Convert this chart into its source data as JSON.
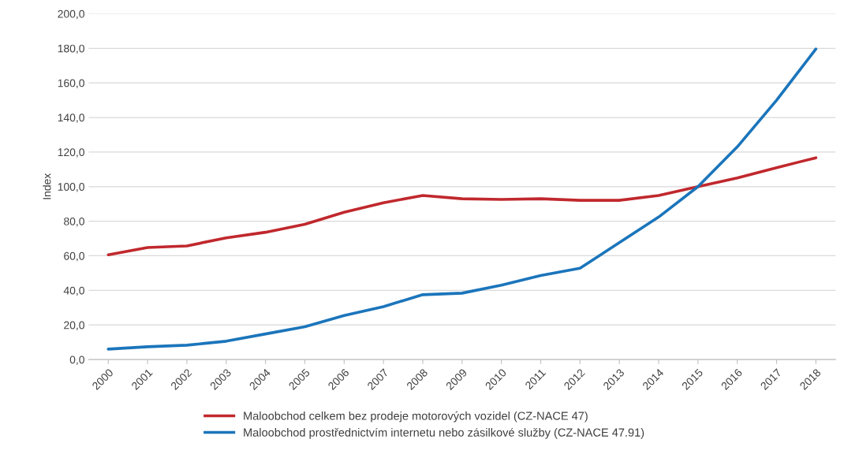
{
  "chart_data": {
    "type": "line",
    "ylabel": "Index",
    "categories": [
      "2000",
      "2001",
      "2002",
      "2003",
      "2004",
      "2005",
      "2006",
      "2007",
      "2008",
      "2009",
      "2010",
      "2011",
      "2012",
      "2013",
      "2014",
      "2015",
      "2016",
      "2017",
      "2018"
    ],
    "series": [
      {
        "name": "Maloobchod celkem bez prodeje motorových vozidel (CZ-NACE 47)",
        "color": "#c0282d",
        "values": [
          60.6,
          64.8,
          65.7,
          70.4,
          73.6,
          78.2,
          85.2,
          90.7,
          94.9,
          93.0,
          92.6,
          93.0,
          92.1,
          92.1,
          94.9,
          100.0,
          105.0,
          111.0,
          116.7
        ]
      },
      {
        "name": "Maloobchod prostřednictvím internetu nebo zásilkové služby (CZ-NACE 47.91)",
        "color": "#1b75bb",
        "values": [
          6.0,
          7.4,
          8.3,
          10.6,
          14.8,
          19.0,
          25.5,
          30.6,
          37.5,
          38.4,
          43.0,
          48.6,
          52.8,
          67.6,
          82.4,
          100.0,
          123.0,
          150.0,
          179.6
        ]
      }
    ],
    "ylim": [
      0,
      200
    ],
    "yticks": [
      {
        "value": 0,
        "label": "0,0"
      },
      {
        "value": 20,
        "label": "20,0"
      },
      {
        "value": 40,
        "label": "40,0"
      },
      {
        "value": 60,
        "label": "60,0"
      },
      {
        "value": 80,
        "label": "80,0"
      },
      {
        "value": 100,
        "label": "100,0"
      },
      {
        "value": 120,
        "label": "120,0"
      },
      {
        "value": 140,
        "label": "140,0"
      },
      {
        "value": 160,
        "label": "160,0"
      },
      {
        "value": 180,
        "label": "180,0"
      },
      {
        "value": 200,
        "label": "200,0"
      }
    ],
    "grid": "y",
    "legend": "bottom",
    "marker": "none",
    "line_style": "solid"
  }
}
